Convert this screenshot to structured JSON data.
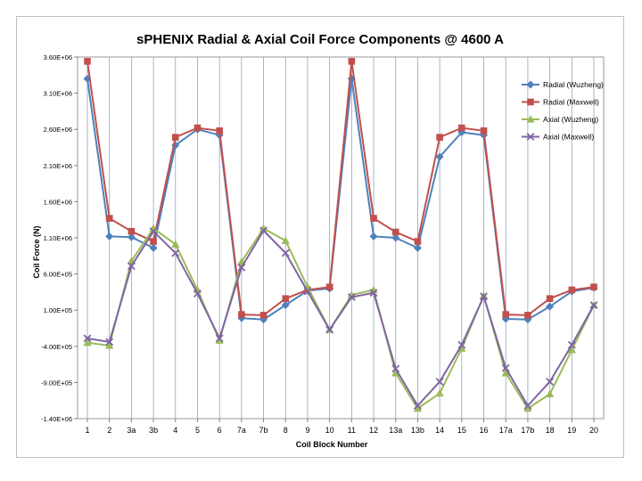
{
  "chart_data": {
    "type": "line",
    "title": "sPHENIX Radial & Axial Coil Force Components @ 4600 A",
    "xlabel": "Coil Block Number",
    "ylabel": "Coil Force (N)",
    "categories": [
      "1",
      "2",
      "3a",
      "3b",
      "4",
      "5",
      "6",
      "7a",
      "7b",
      "8",
      "9",
      "10",
      "11",
      "12",
      "13a",
      "13b",
      "14",
      "15",
      "16",
      "17a",
      "17b",
      "18",
      "19",
      "20"
    ],
    "y_ticks": [
      "3.60E+06",
      "3.10E+06",
      "2.60E+06",
      "2.10E+06",
      "1.60E+06",
      "1.10E+06",
      "6.00E+05",
      "1.00E+05",
      "-4.00E+05",
      "-9.00E+05",
      "-1.40E+06"
    ],
    "ylim": [
      -1400000,
      3600000
    ],
    "grid": "vertical",
    "legend_position": "top-right",
    "series": [
      {
        "name": "Radial (Wuzheng)",
        "color": "#4f81bd",
        "marker": "diamond",
        "values": [
          3300000,
          1120000,
          1110000,
          960000,
          2380000,
          2600000,
          2520000,
          -10000,
          -30000,
          170000,
          370000,
          400000,
          3300000,
          1120000,
          1100000,
          960000,
          2220000,
          2560000,
          2520000,
          -20000,
          -30000,
          150000,
          360000,
          410000
        ]
      },
      {
        "name": "Radial (Maxwell)",
        "color": "#c0504d",
        "marker": "square",
        "values": [
          3540000,
          1370000,
          1190000,
          1050000,
          2490000,
          2620000,
          2580000,
          40000,
          30000,
          260000,
          380000,
          420000,
          3540000,
          1370000,
          1180000,
          1050000,
          2490000,
          2620000,
          2580000,
          40000,
          30000,
          260000,
          380000,
          420000
        ]
      },
      {
        "name": "Axial (Wuzheng)",
        "color": "#9bbb59",
        "marker": "triangle",
        "values": [
          -350000,
          -390000,
          780000,
          1230000,
          1010000,
          380000,
          -320000,
          770000,
          1230000,
          1060000,
          420000,
          -170000,
          310000,
          380000,
          -770000,
          -1260000,
          -1050000,
          -430000,
          300000,
          -770000,
          -1260000,
          -1060000,
          -450000,
          170000
        ]
      },
      {
        "name": "Axial (Maxwell)",
        "color": "#8064a2",
        "marker": "x",
        "values": [
          -290000,
          -340000,
          710000,
          1190000,
          890000,
          330000,
          -290000,
          690000,
          1200000,
          890000,
          360000,
          -170000,
          280000,
          340000,
          -710000,
          -1220000,
          -890000,
          -380000,
          290000,
          -700000,
          -1220000,
          -890000,
          -380000,
          170000
        ]
      }
    ]
  }
}
